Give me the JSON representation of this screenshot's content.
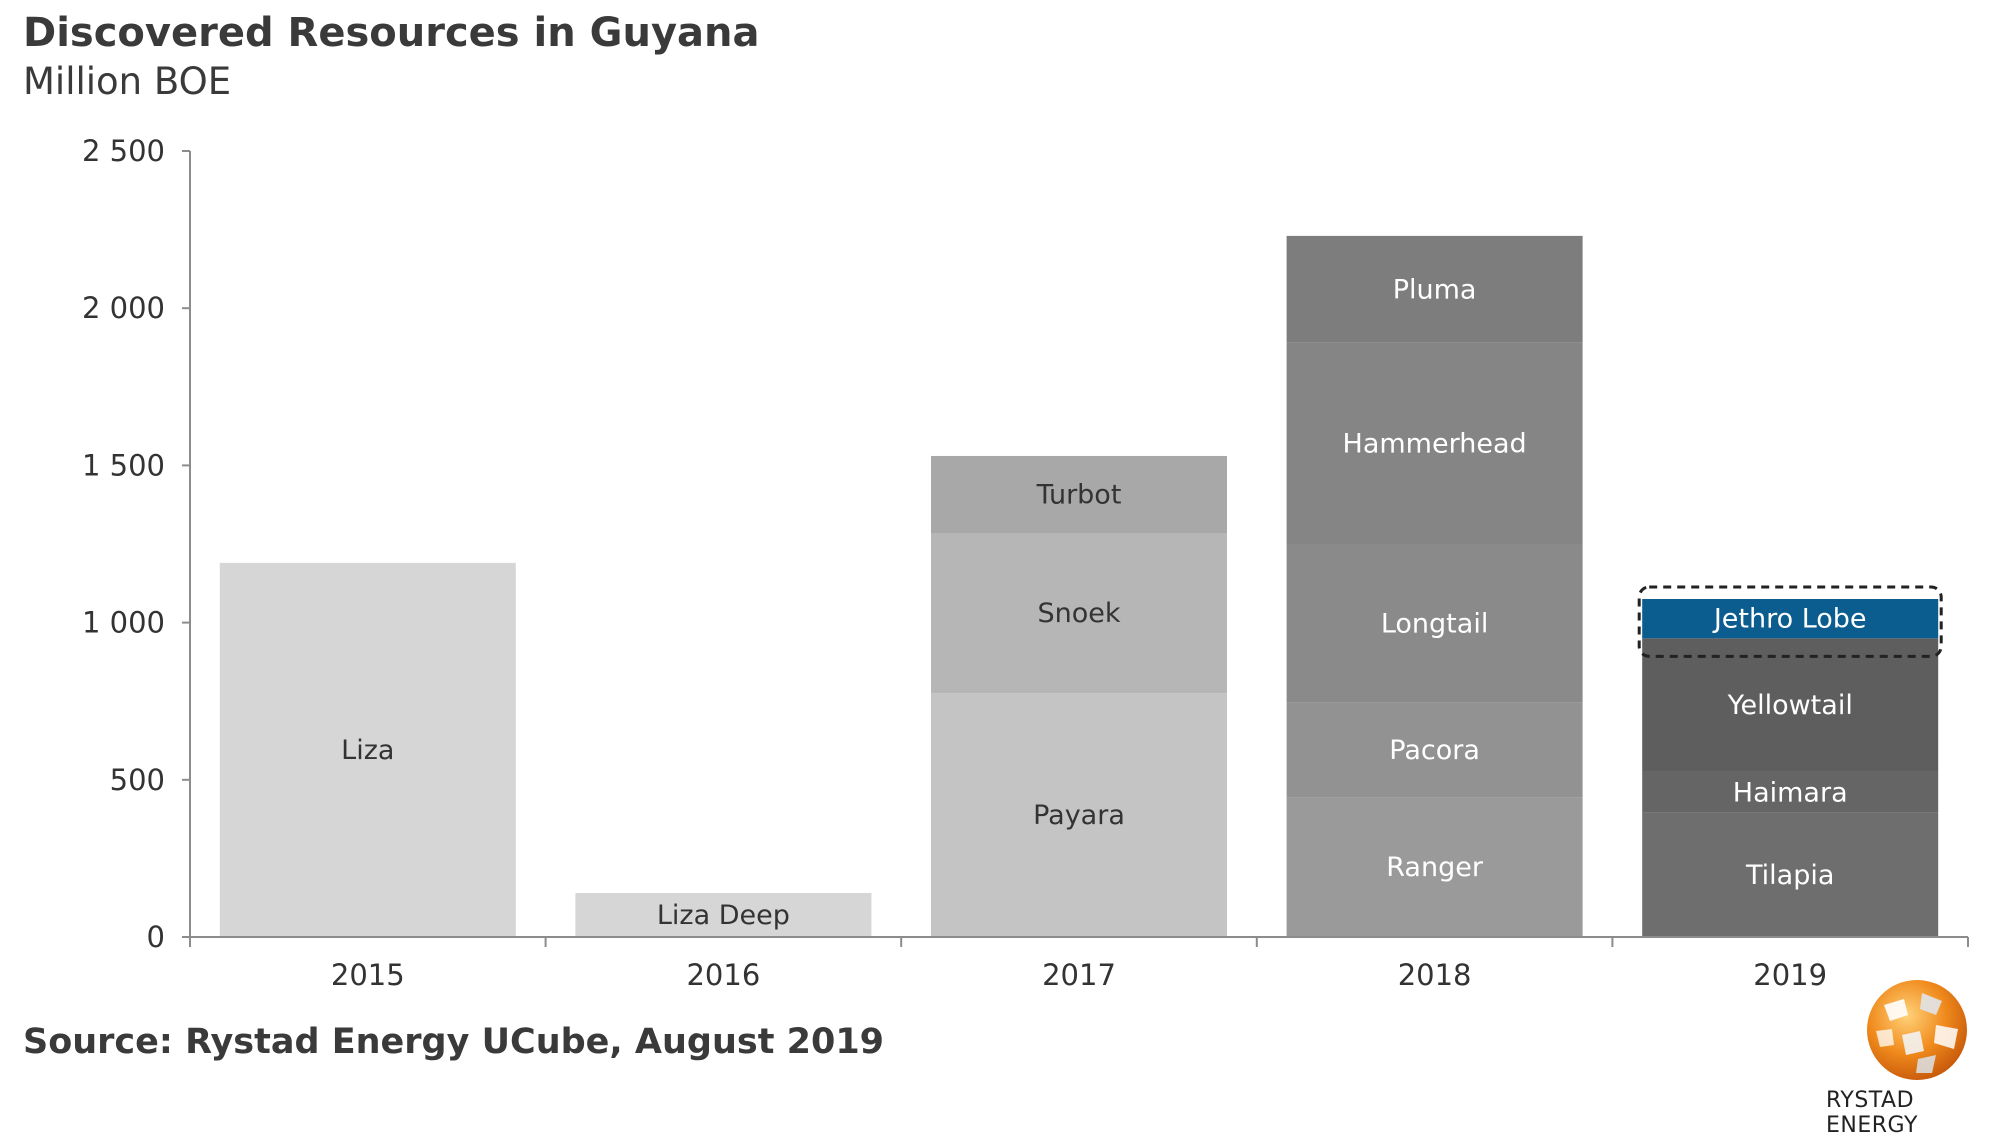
{
  "title": "Discovered Resources in Guyana",
  "subtitle": "Million BOE",
  "source": "Source: Rystad Energy UCube, August 2019",
  "brand": "RYSTAD ENERGY",
  "chart_data": {
    "type": "bar",
    "stacked": true,
    "categories": [
      "2015",
      "2016",
      "2017",
      "2018",
      "2019"
    ],
    "ylim": [
      0,
      2500
    ],
    "yticks": [
      0,
      500,
      1000,
      1500,
      2000,
      2500
    ],
    "ytick_labels": [
      "0",
      "500",
      "1 000",
      "1 500",
      "2 000",
      "2 500"
    ],
    "grid": false,
    "legend": "none (segments labeled directly)",
    "stacks": [
      {
        "category": "2015",
        "segments": [
          {
            "name": "Liza",
            "value": 1190,
            "color": "#d6d6d6",
            "text_color": "#333333"
          }
        ]
      },
      {
        "category": "2016",
        "segments": [
          {
            "name": "Liza Deep",
            "value": 140,
            "color": "#d6d6d6",
            "text_color": "#333333"
          }
        ]
      },
      {
        "category": "2017",
        "segments": [
          {
            "name": "Payara",
            "value": 775,
            "color": "#c4c4c4",
            "text_color": "#333333"
          },
          {
            "name": "Snoek",
            "value": 510,
            "color": "#b6b6b6",
            "text_color": "#333333"
          },
          {
            "name": "Turbot",
            "value": 245,
            "color": "#a8a8a8",
            "text_color": "#333333"
          }
        ]
      },
      {
        "category": "2018",
        "segments": [
          {
            "name": "Ranger",
            "value": 445,
            "color": "#9a9a9a",
            "text_color": "#ffffff"
          },
          {
            "name": "Pacora",
            "value": 300,
            "color": "#929292",
            "text_color": "#ffffff"
          },
          {
            "name": "Longtail",
            "value": 505,
            "color": "#8a8a8a",
            "text_color": "#ffffff"
          },
          {
            "name": "Hammerhead",
            "value": 640,
            "color": "#858585",
            "text_color": "#ffffff"
          },
          {
            "name": "Pluma",
            "value": 340,
            "color": "#7d7d7d",
            "text_color": "#ffffff"
          }
        ]
      },
      {
        "category": "2019",
        "segments": [
          {
            "name": "Tilapia",
            "value": 395,
            "color": "#6e6e6e",
            "text_color": "#ffffff"
          },
          {
            "name": "Haimara",
            "value": 130,
            "color": "#656565",
            "text_color": "#ffffff"
          },
          {
            "name": "Yellowtail",
            "value": 425,
            "color": "#5e5e5e",
            "text_color": "#ffffff"
          },
          {
            "name": "Jethro Lobe",
            "value": 125,
            "color": "#0b5c8f",
            "text_color": "#ffffff",
            "highlighted": true
          }
        ]
      }
    ]
  }
}
